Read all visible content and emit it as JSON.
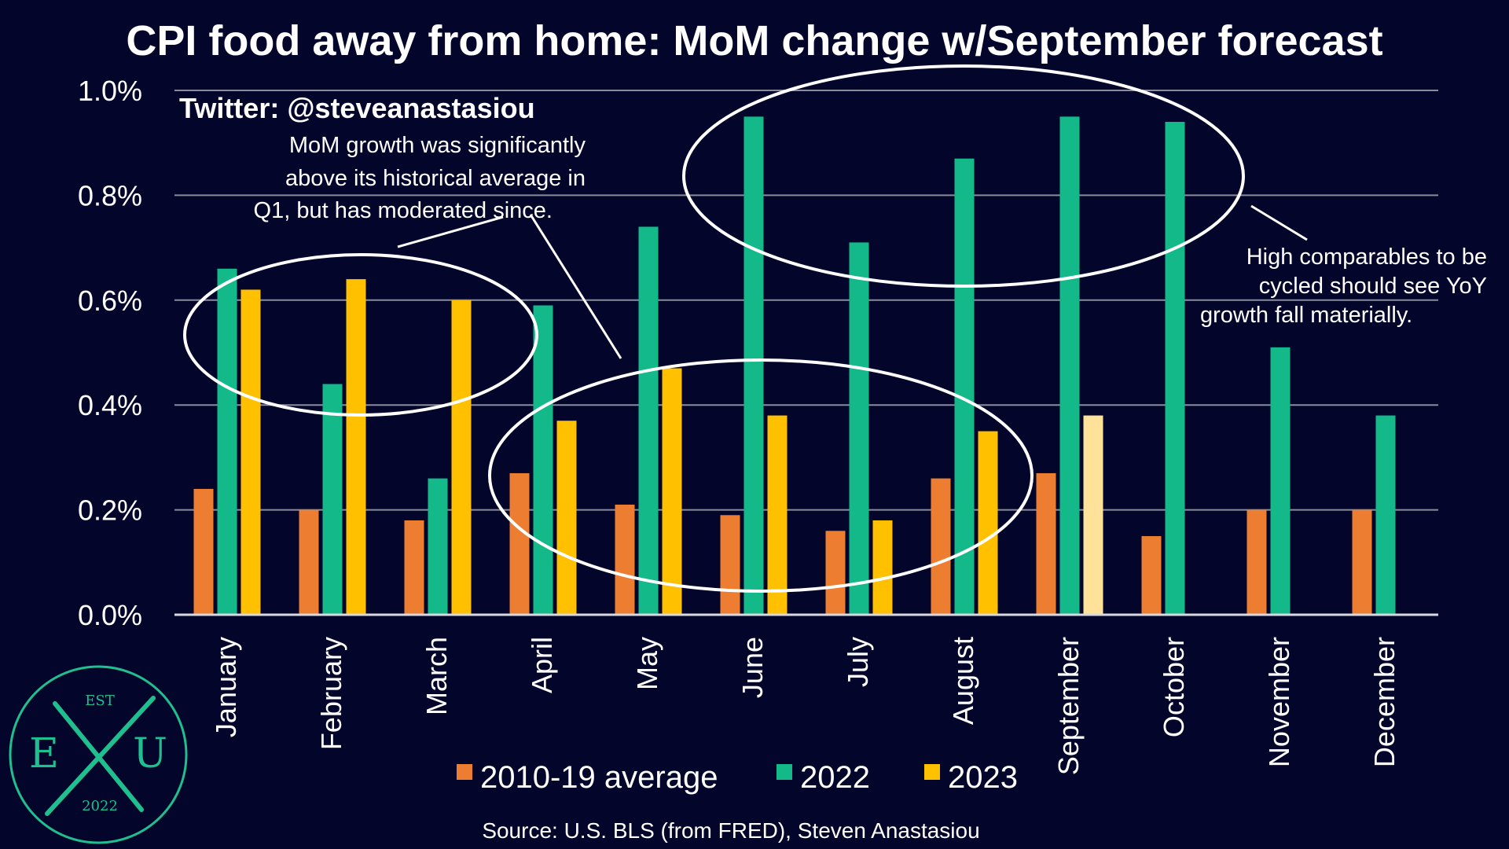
{
  "chart_data": {
    "type": "bar",
    "title": "CPI food away from home: MoM change w/September forecast",
    "categories": [
      "January",
      "February",
      "March",
      "April",
      "May",
      "June",
      "July",
      "August",
      "September",
      "October",
      "November",
      "December"
    ],
    "series": [
      {
        "name": "2010-19 average",
        "color": "#ed7d31",
        "values": [
          0.24,
          0.2,
          0.18,
          0.27,
          0.21,
          0.19,
          0.16,
          0.26,
          0.27,
          0.15,
          0.2,
          0.2
        ]
      },
      {
        "name": "2022",
        "color": "#13b989",
        "values": [
          0.66,
          0.44,
          0.26,
          0.59,
          0.74,
          0.95,
          0.71,
          0.87,
          0.95,
          0.94,
          0.51,
          0.38
        ]
      },
      {
        "name": "2023",
        "color": "#ffc000",
        "values": [
          0.62,
          0.64,
          0.6,
          0.37,
          0.47,
          0.38,
          0.18,
          0.35,
          0.38,
          null,
          null,
          null
        ]
      }
    ],
    "forecast_color": "#ffe29a",
    "forecast_note": "September 2023 bar is a forecast (lighter shade)",
    "ylim": [
      0,
      1.0
    ],
    "yticks": [
      "0.0%",
      "0.2%",
      "0.4%",
      "0.6%",
      "0.8%",
      "1.0%"
    ],
    "ytick_values": [
      0,
      0.2,
      0.4,
      0.6,
      0.8,
      1.0
    ],
    "grid": true,
    "legend_position": "bottom",
    "xlabel": "",
    "ylabel": ""
  },
  "annotations": {
    "handle": "Twitter: @steveanastasiou",
    "note_q1": [
      "MoM growth was significantly",
      "above its historical average in",
      "Q1, but has moderated since."
    ],
    "note_comparables": [
      "High comparables to be",
      "cycled should see YoY",
      "growth fall materially."
    ]
  },
  "source": "Source: U.S. BLS (from FRED), Steven Anastasiou",
  "logo": {
    "top": "EST",
    "left": "E",
    "right": "U",
    "bottom": "2022",
    "color": "#1fbf8f"
  },
  "colors": {
    "background": "#03052a",
    "grid": "#8a8c9c",
    "text": "#ffffff"
  }
}
